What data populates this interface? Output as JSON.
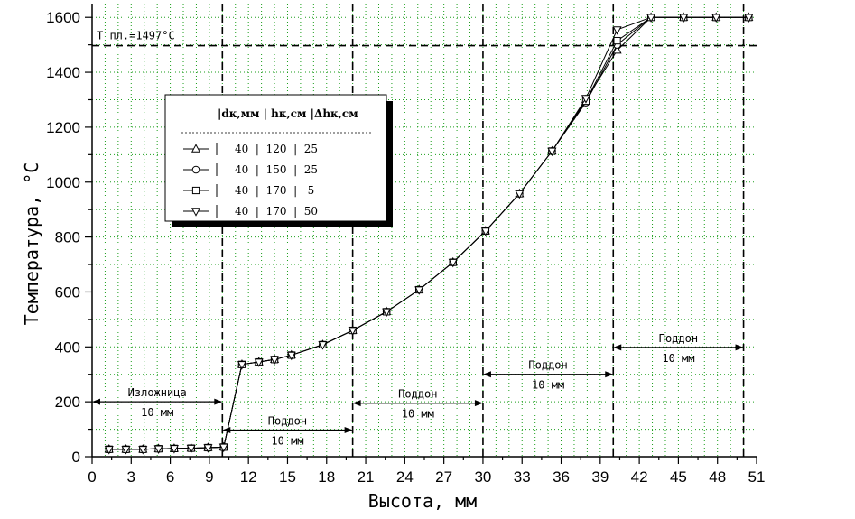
{
  "chart_data": {
    "type": "line",
    "xlabel": "Высота, мм",
    "ylabel": "Температура, °С",
    "xlim": [
      0,
      51
    ],
    "ylim": [
      0,
      1650
    ],
    "x_ticks": [
      "0",
      "3",
      "6",
      "9",
      "12",
      "15",
      "18",
      "21",
      "24",
      "27",
      "30",
      "33",
      "36",
      "39",
      "42",
      "45",
      "48",
      "51"
    ],
    "y_ticks": [
      "0",
      "200",
      "400",
      "600",
      "800",
      "1000",
      "1200",
      "1400",
      "1600"
    ],
    "grid": true,
    "reference_line": {
      "label": "T_пл.=1497°С",
      "y": 1497
    },
    "vertical_lines": [
      10,
      20,
      30,
      40,
      50
    ],
    "legend": {
      "placement": "upper-left",
      "header": "|dк,мм  | hк,см  |Δhк,см",
      "entries": [
        {
          "marker": "triangle-up",
          "row": "40  |  120  |  25"
        },
        {
          "marker": "circle",
          "row": "40  |  150  |  25"
        },
        {
          "marker": "square",
          "row": "40  |  170  |   5"
        },
        {
          "marker": "triangle-down",
          "row": "40  |  170  |  50"
        }
      ]
    },
    "regions": [
      {
        "label": "Изложница",
        "size": "10 мм",
        "from": 0,
        "to": 10,
        "y": 200
      },
      {
        "label": "Поддон",
        "size": "10 мм",
        "from": 10,
        "to": 20,
        "y": 97
      },
      {
        "label": "Поддон",
        "size": "10 мм",
        "from": 20,
        "to": 30,
        "y": 195
      },
      {
        "label": "Поддон",
        "size": "10 мм",
        "from": 30,
        "to": 40,
        "y": 300
      },
      {
        "label": "Поддон",
        "size": "10 мм",
        "from": 40,
        "to": 50,
        "y": 398
      }
    ],
    "x": [
      1.3,
      2.6,
      3.9,
      5.1,
      6.3,
      7.6,
      8.9,
      10.1,
      11.5,
      12.8,
      14.0,
      15.3,
      17.7,
      20.0,
      22.6,
      25.1,
      27.7,
      30.2,
      32.8,
      35.3,
      37.9,
      40.3,
      42.9,
      45.4,
      47.9,
      50.4
    ],
    "series": [
      {
        "marker": "triangle-up",
        "values": [
          27,
          27,
          27,
          29,
          30,
          31,
          33,
          35,
          336,
          345,
          354,
          370,
          408,
          460,
          528,
          608,
          708,
          822,
          958,
          1113,
          1300,
          1480,
          1600,
          1600,
          1600,
          1600
        ]
      },
      {
        "marker": "circle",
        "values": [
          27,
          27,
          27,
          29,
          30,
          31,
          33,
          35,
          336,
          345,
          354,
          370,
          408,
          460,
          528,
          608,
          708,
          822,
          958,
          1113,
          1290,
          1500,
          1600,
          1600,
          1600,
          1600
        ]
      },
      {
        "marker": "square",
        "values": [
          27,
          27,
          27,
          29,
          30,
          31,
          33,
          35,
          336,
          345,
          354,
          370,
          408,
          460,
          528,
          608,
          708,
          822,
          958,
          1113,
          1295,
          1515,
          1600,
          1600,
          1600,
          1600
        ]
      },
      {
        "marker": "triangle-down",
        "values": [
          27,
          27,
          27,
          29,
          30,
          31,
          33,
          35,
          336,
          345,
          354,
          370,
          408,
          460,
          528,
          608,
          708,
          822,
          958,
          1113,
          1305,
          1555,
          1600,
          1600,
          1600,
          1600
        ]
      }
    ]
  }
}
